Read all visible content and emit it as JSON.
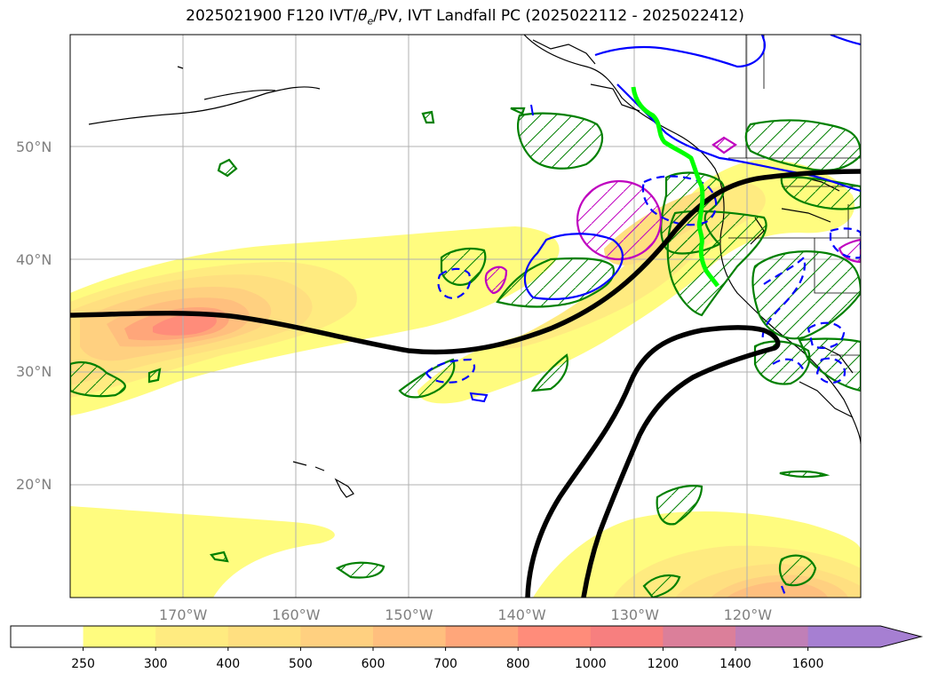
{
  "title": {
    "prefix": "2025021900 F120 IVT/",
    "theta": "θ",
    "theta_sub": "e",
    "suffix": "/PV, IVT Landfall PC (2025022112 - 2025022412)"
  },
  "map": {
    "lon_range": [
      -180,
      -110
    ],
    "lat_range": [
      10,
      60
    ],
    "lat_ticks": [
      {
        "value": 50,
        "label": "50°N"
      },
      {
        "value": 40,
        "label": "40°N"
      },
      {
        "value": 30,
        "label": "30°N"
      },
      {
        "value": 20,
        "label": "20°N"
      }
    ],
    "lon_ticks": [
      {
        "value": -170,
        "label": "170°W"
      },
      {
        "value": -160,
        "label": "160°W"
      },
      {
        "value": -150,
        "label": "150°W"
      },
      {
        "value": -140,
        "label": "140°W"
      },
      {
        "value": -130,
        "label": "130°W"
      },
      {
        "value": -120,
        "label": "120°W"
      }
    ],
    "gridlines": true
  },
  "colorbar": {
    "levels": [
      {
        "label": "250",
        "color": "#fffc7f"
      },
      {
        "label": "300",
        "color": "#ffeb80"
      },
      {
        "label": "400",
        "color": "#ffdf80"
      },
      {
        "label": "500",
        "color": "#ffd080"
      },
      {
        "label": "600",
        "color": "#ffbf7e"
      },
      {
        "label": "700",
        "color": "#ffa67a"
      },
      {
        "label": "800",
        "color": "#ff8c7a"
      },
      {
        "label": "1000",
        "color": "#f77f7f"
      },
      {
        "label": "1200",
        "color": "#db7f9a"
      },
      {
        "label": "1400",
        "color": "#c07fb7"
      },
      {
        "label": "1600",
        "color": "#a67fd2"
      }
    ],
    "below_color": "#ffffff",
    "extend": "max"
  },
  "colors": {
    "pv_contour": "#000000",
    "landfall": "#00ff00",
    "theta_positive": "#0000ff",
    "theta_negative": "#0000ff",
    "green_contour": "#008000",
    "magenta_contour": "#bf00bf",
    "coastline": "#000000"
  }
}
